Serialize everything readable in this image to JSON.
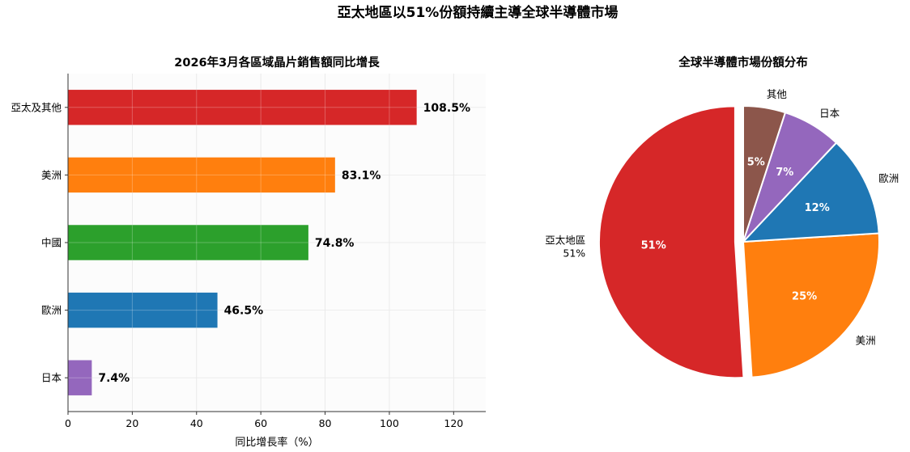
{
  "figure": {
    "title": "亞太地區以51%份額持續主導全球半導體市場"
  },
  "chart_data": [
    {
      "type": "bar",
      "orientation": "horizontal",
      "title": "2026年3月各區域晶片銷售額同比增長",
      "xlabel": "同比增長率（%）",
      "ylabel": "",
      "xlim": [
        0,
        130
      ],
      "xticks": [
        0,
        20,
        40,
        60,
        80,
        100,
        120
      ],
      "grid": true,
      "categories": [
        "亞太及其他",
        "美洲",
        "中國",
        "歐洲",
        "日本"
      ],
      "values": [
        108.5,
        83.1,
        74.8,
        46.5,
        7.4
      ],
      "value_labels": [
        "108.5%",
        "83.1%",
        "74.8%",
        "46.5%",
        "7.4%"
      ],
      "colors": [
        "#d62728",
        "#ff7f0e",
        "#2ca02c",
        "#1f77b4",
        "#9467bd"
      ]
    },
    {
      "type": "pie",
      "title": "全球半導體市場份額分布",
      "labels": [
        "亞太地區\n51%",
        "美洲",
        "歐洲",
        "日本",
        "其他"
      ],
      "values": [
        51,
        25,
        12,
        7,
        5
      ],
      "percent_labels": [
        "51%",
        "25%",
        "12%",
        "7%",
        "5%"
      ],
      "colors": [
        "#d62728",
        "#ff7f0e",
        "#1f77b4",
        "#9467bd",
        "#8c564b"
      ],
      "exploded": [
        true,
        false,
        false,
        false,
        false
      ],
      "start_angle": 90,
      "direction": "counterclockwise"
    }
  ]
}
